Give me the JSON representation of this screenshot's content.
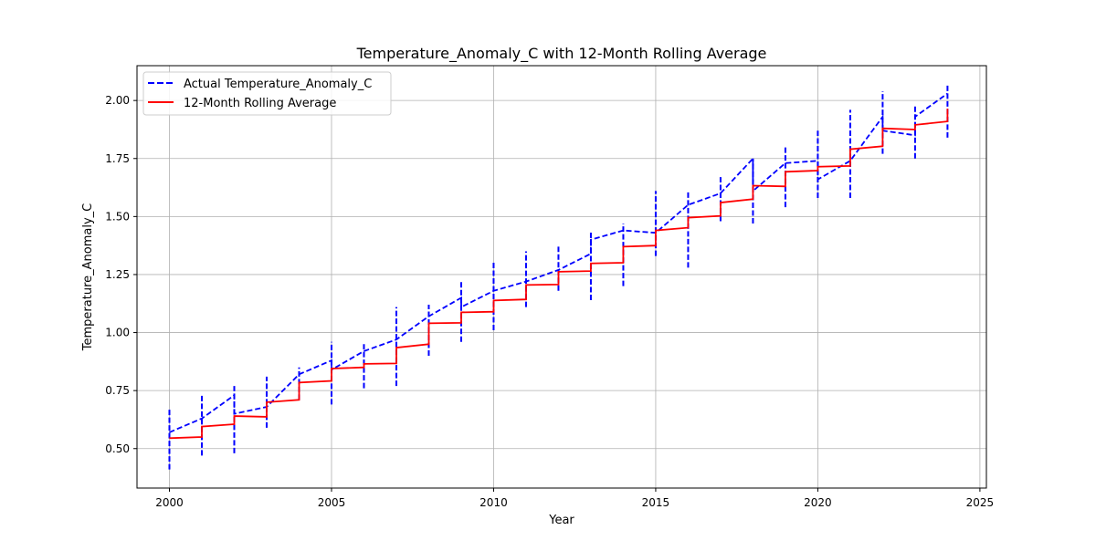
{
  "chart_data": {
    "type": "line",
    "title": "Temperature_Anomaly_C with 12-Month Rolling Average",
    "xlabel": "Year",
    "ylabel": "Temperature_Anomaly_C",
    "xlim": [
      1999.0,
      2025.2
    ],
    "ylim": [
      0.33,
      2.15
    ],
    "xticks": [
      2000,
      2005,
      2010,
      2015,
      2020,
      2025
    ],
    "yticks": [
      0.5,
      0.75,
      1.0,
      1.25,
      1.5,
      1.75,
      2.0
    ],
    "xtick_labels": [
      "2000",
      "2005",
      "2010",
      "2015",
      "2020",
      "2025"
    ],
    "ytick_labels": [
      "0.50",
      "0.75",
      "1.00",
      "1.25",
      "1.50",
      "1.75",
      "2.00"
    ],
    "grid": true,
    "legend_position": "top-left",
    "series": [
      {
        "name": "Actual Temperature_Anomaly_C",
        "color": "#0000ff",
        "style": "dashed",
        "years": [
          2000,
          2001,
          2002,
          2003,
          2004,
          2005,
          2006,
          2007,
          2008,
          2009,
          2010,
          2011,
          2012,
          2013,
          2014,
          2015,
          2016,
          2017,
          2018,
          2019,
          2020,
          2021,
          2022,
          2023,
          2024
        ],
        "monthly_ranges": [
          [
            0.41,
            0.67
          ],
          [
            0.47,
            0.73
          ],
          [
            0.48,
            0.77
          ],
          [
            0.59,
            0.81
          ],
          [
            0.71,
            0.85
          ],
          [
            0.69,
            0.96
          ],
          [
            0.76,
            0.95
          ],
          [
            0.77,
            1.11
          ],
          [
            0.9,
            1.12
          ],
          [
            0.96,
            1.22
          ],
          [
            1.01,
            1.31
          ],
          [
            1.11,
            1.35
          ],
          [
            1.18,
            1.37
          ],
          [
            1.14,
            1.44
          ],
          [
            1.2,
            1.47
          ],
          [
            1.33,
            1.61
          ],
          [
            1.28,
            1.61
          ],
          [
            1.48,
            1.67
          ],
          [
            1.47,
            1.75
          ],
          [
            1.54,
            1.8
          ],
          [
            1.58,
            1.87
          ],
          [
            1.58,
            1.96
          ],
          [
            1.77,
            2.04
          ],
          [
            1.75,
            1.98
          ],
          [
            1.84,
            2.07
          ]
        ],
        "connect_points": [
          [
            2000,
            0.57
          ],
          [
            2001,
            0.63
          ],
          [
            2002,
            0.73
          ],
          [
            2002,
            0.65
          ],
          [
            2003,
            0.68
          ],
          [
            2004,
            0.82
          ],
          [
            2005,
            0.88
          ],
          [
            2005,
            0.84
          ],
          [
            2006,
            0.92
          ],
          [
            2007,
            0.97
          ],
          [
            2008,
            1.07
          ],
          [
            2009,
            1.15
          ],
          [
            2009,
            1.11
          ],
          [
            2010,
            1.18
          ],
          [
            2011,
            1.22
          ],
          [
            2012,
            1.27
          ],
          [
            2013,
            1.34
          ],
          [
            2013,
            1.4
          ],
          [
            2014,
            1.44
          ],
          [
            2015,
            1.43
          ],
          [
            2016,
            1.55
          ],
          [
            2017,
            1.6
          ],
          [
            2018,
            1.75
          ],
          [
            2018,
            1.61
          ],
          [
            2019,
            1.73
          ],
          [
            2020,
            1.74
          ],
          [
            2020,
            1.66
          ],
          [
            2021,
            1.74
          ],
          [
            2022,
            1.93
          ],
          [
            2022,
            1.87
          ],
          [
            2023,
            1.85
          ],
          [
            2023,
            1.93
          ],
          [
            2024,
            2.03
          ]
        ]
      },
      {
        "name": "12-Month Rolling Average",
        "color": "#ff0000",
        "style": "solid",
        "steps": [
          [
            2000,
            2001,
            0.545,
            0.55
          ],
          [
            2001,
            2002,
            0.595,
            0.605
          ],
          [
            2002,
            2003,
            0.64,
            0.637
          ],
          [
            2003,
            2004,
            0.7,
            0.71
          ],
          [
            2004,
            2005,
            0.785,
            0.792
          ],
          [
            2005,
            2006,
            0.845,
            0.85
          ],
          [
            2006,
            2007,
            0.865,
            0.867
          ],
          [
            2007,
            2008,
            0.935,
            0.95
          ],
          [
            2008,
            2009,
            1.04,
            1.042
          ],
          [
            2009,
            2010,
            1.087,
            1.09
          ],
          [
            2010,
            2011,
            1.138,
            1.143
          ],
          [
            2011,
            2012,
            1.205,
            1.207
          ],
          [
            2012,
            2013,
            1.262,
            1.265
          ],
          [
            2013,
            2014,
            1.298,
            1.301
          ],
          [
            2014,
            2015,
            1.37,
            1.375
          ],
          [
            2015,
            2016,
            1.44,
            1.452
          ],
          [
            2016,
            2017,
            1.495,
            1.503
          ],
          [
            2017,
            2018,
            1.56,
            1.575
          ],
          [
            2018,
            2019,
            1.633,
            1.63
          ],
          [
            2019,
            2020,
            1.693,
            1.698
          ],
          [
            2020,
            2021,
            1.715,
            1.718
          ],
          [
            2021,
            2022,
            1.79,
            1.803
          ],
          [
            2022,
            2023,
            1.88,
            1.875
          ],
          [
            2023,
            2024,
            1.895,
            1.91
          ],
          [
            2024,
            2024,
            1.965,
            1.965
          ]
        ]
      }
    ]
  }
}
